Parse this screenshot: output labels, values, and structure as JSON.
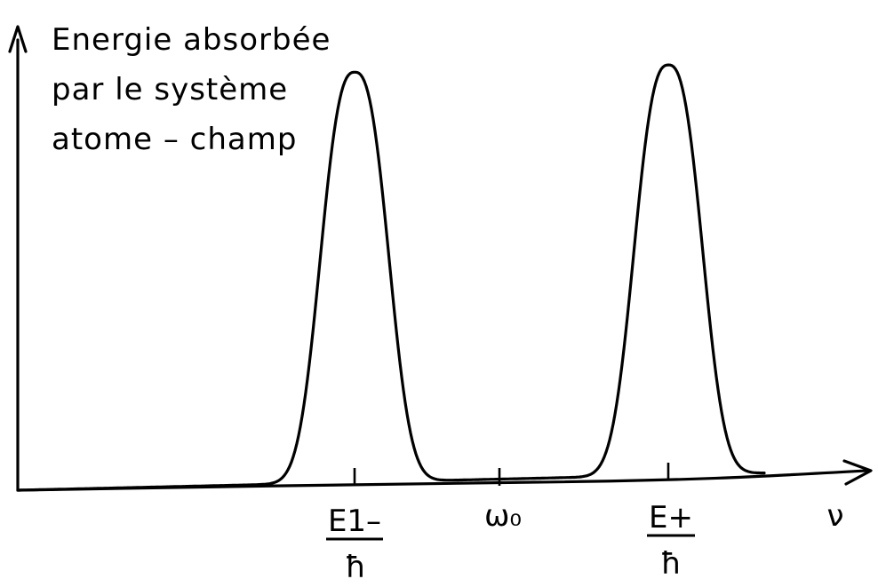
{
  "figure": {
    "y_axis_label_lines": [
      "Energie absorbée",
      "par le système",
      "atome – champ"
    ],
    "x_axis_label": "ν",
    "ticks": [
      {
        "id": "e1",
        "numerator": "E1–",
        "denominator": "ħ"
      },
      {
        "id": "w0",
        "label": "ω₀"
      },
      {
        "id": "e2",
        "numerator": "E+",
        "denominator": "ħ"
      }
    ]
  },
  "chart_data": {
    "type": "line",
    "title": "",
    "xlabel": "ν",
    "ylabel": "Energie absorbée par le système atome – champ",
    "x_ticks": [
      "E1–/ħ",
      "ω₀",
      "E+/ħ"
    ],
    "peaks": [
      {
        "center": "E1–/ħ",
        "height": 1.0
      },
      {
        "center": "E+/ħ",
        "height": 1.0
      }
    ],
    "grid": false,
    "legend": "none",
    "colors": {
      "line": "#000000"
    }
  }
}
